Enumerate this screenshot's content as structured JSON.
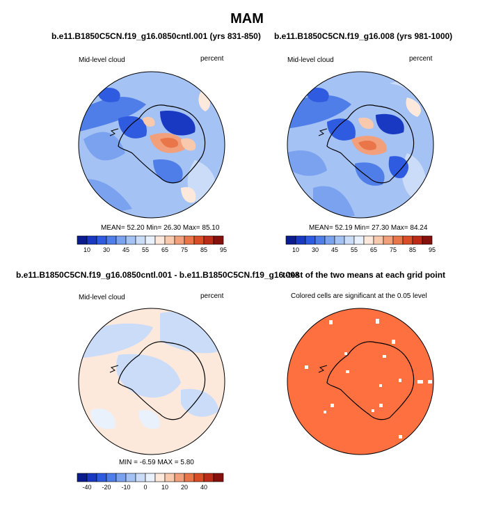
{
  "figure": {
    "title": "MAM"
  },
  "chart_data": [
    {
      "type": "heatmap",
      "projection": "south-polar-stereographic",
      "title": "b.e11.B1850C5CN.f19_g16.0850cntl.001 (yrs 831-850)",
      "left_label": "Mid-level cloud",
      "right_label": "percent",
      "stats": {
        "mean_label": "MEAN=",
        "mean": "52.20",
        "min_label": "Min=",
        "min": "26.30",
        "max_label": "Max=",
        "max": "85.10"
      },
      "colorbar_ticks": [
        "10",
        "30",
        "45",
        "55",
        "65",
        "75",
        "85",
        "95"
      ]
    },
    {
      "type": "heatmap",
      "projection": "south-polar-stereographic",
      "title": "b.e11.B1850C5CN.f19_g16.008 (yrs 981-1000)",
      "left_label": "Mid-level cloud",
      "right_label": "percent",
      "stats": {
        "mean_label": "MEAN=",
        "mean": "52.19",
        "min_label": "Min=",
        "min": "27.30",
        "max_label": "Max=",
        "max": "84.24"
      },
      "colorbar_ticks": [
        "10",
        "30",
        "45",
        "55",
        "65",
        "75",
        "85",
        "95"
      ]
    },
    {
      "type": "heatmap",
      "projection": "south-polar-stereographic",
      "title": "b.e11.B1850C5CN.f19_g16.0850cntl.001 - b.e11.B1850C5CN.f19_g16.008",
      "left_label": "Mid-level cloud",
      "right_label": "percent",
      "stats": {
        "min_label": "MIN =",
        "min": "-6.59",
        "max_label": "MAX =",
        "max": "5.80"
      },
      "colorbar_ticks": [
        "-40",
        "-20",
        "-10",
        "0",
        "10",
        "20",
        "40"
      ]
    },
    {
      "type": "heatmap",
      "projection": "south-polar-stereographic",
      "title": "t-test of the two means at each grid point",
      "subtitle": "Colored cells are significant at the 0.05 level"
    }
  ],
  "colors": {
    "abs_scale": [
      "#0a1c8e",
      "#1a39c2",
      "#2f5be0",
      "#4f7ee8",
      "#7aa2ef",
      "#a4c2f4",
      "#cbdcf9",
      "#e9f1fd",
      "#fde9dc",
      "#f9c9ad",
      "#f2a07c",
      "#ea7548",
      "#d94e26",
      "#bb2b17",
      "#86100b"
    ],
    "diff_scale": [
      "#0a1c8e",
      "#1a39c2",
      "#2f5be0",
      "#4f7ee8",
      "#7aa2ef",
      "#a4c2f4",
      "#cbdcf9",
      "#e9f1fd",
      "#fde9dc",
      "#f9c9ad",
      "#f2a07c",
      "#ea7548",
      "#d94e26",
      "#bb2b17",
      "#86100b"
    ],
    "ttest_fill": "#ff7040"
  }
}
